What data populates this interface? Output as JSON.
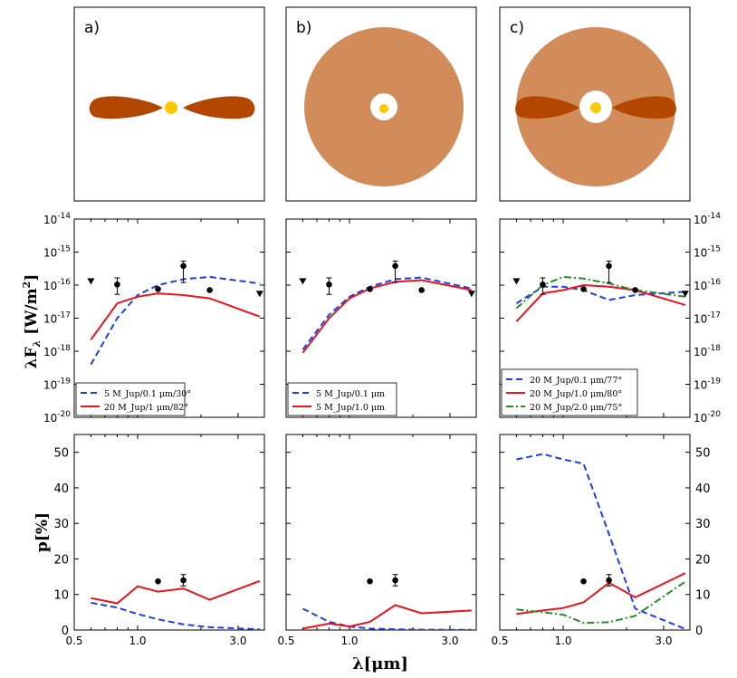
{
  "chart_data": [
    {
      "panel": "a",
      "type": "diagram",
      "title": "a)",
      "colors": {
        "disk": "#b34600",
        "star": "#ffc800"
      }
    },
    {
      "panel": "b",
      "type": "diagram",
      "title": "b)",
      "colors": {
        "envelope": "#d28c5a",
        "cavity": "#ffffff",
        "star": "#ffc800"
      }
    },
    {
      "panel": "c",
      "type": "diagram",
      "title": "c)",
      "colors": {
        "envelope": "#d28c5a",
        "disk": "#b34600",
        "cavity": "#ffffff",
        "star": "#ffc800"
      }
    },
    {
      "panel": "a-sed",
      "type": "line",
      "ylabel": "λF_λ [W/m²]",
      "yscale": "log",
      "ylim_exp": [
        -20,
        -14
      ],
      "xlim": [
        0.5,
        4.0
      ],
      "series": [
        {
          "name": "5 M_Jup/0.1 μm/30°",
          "color": "#1f3fe0",
          "style": "dashed",
          "x": [
            0.6,
            0.8,
            1.0,
            1.25,
            1.65,
            2.2,
            3.8
          ],
          "y_exp": [
            -18.4,
            -17.0,
            -16.3,
            -16.0,
            -15.82,
            -15.75,
            -15.95
          ]
        },
        {
          "name": "20 M_Jup/1 μm/82°",
          "color": "#e8141e",
          "style": "solid",
          "x": [
            0.6,
            0.8,
            1.0,
            1.25,
            1.65,
            2.2,
            3.8
          ],
          "y_exp": [
            -17.65,
            -16.55,
            -16.35,
            -16.25,
            -16.3,
            -16.4,
            -16.95
          ]
        }
      ],
      "points": [
        {
          "x": 0.6,
          "y_exp": -15.9,
          "kind": "upper-limit"
        },
        {
          "x": 0.8,
          "y_exp": -15.98,
          "err_lo": 0.3,
          "err_hi": 0.2
        },
        {
          "x": 1.25,
          "y_exp": -16.12
        },
        {
          "x": 1.65,
          "y_exp": -15.42,
          "err_lo": 0.5,
          "err_hi": 0.15
        },
        {
          "x": 2.2,
          "y_exp": -16.15
        },
        {
          "x": 3.8,
          "y_exp": -16.28,
          "kind": "upper-limit"
        }
      ],
      "legend": "lower-left"
    },
    {
      "panel": "b-sed",
      "type": "line",
      "yscale": "log",
      "ylim_exp": [
        -20,
        -14
      ],
      "xlim": [
        0.5,
        4.0
      ],
      "series": [
        {
          "name": "5 M_Jup/0.1 μm",
          "color": "#1f3fe0",
          "style": "dashed",
          "x": [
            0.6,
            0.8,
            1.0,
            1.25,
            1.65,
            2.2,
            3.8
          ],
          "y_exp": [
            -17.95,
            -16.9,
            -16.35,
            -16.05,
            -15.82,
            -15.77,
            -16.1
          ]
        },
        {
          "name": "5 M_Jup/1.0 μm",
          "color": "#e8141e",
          "style": "solid",
          "x": [
            0.6,
            0.8,
            1.0,
            1.25,
            1.65,
            2.2,
            3.8
          ],
          "y_exp": [
            -18.05,
            -17.0,
            -16.4,
            -16.1,
            -15.9,
            -15.85,
            -16.15
          ]
        }
      ],
      "points": [
        {
          "x": 0.6,
          "y_exp": -15.9,
          "kind": "upper-limit"
        },
        {
          "x": 0.8,
          "y_exp": -15.98,
          "err_lo": 0.3,
          "err_hi": 0.2
        },
        {
          "x": 1.25,
          "y_exp": -16.12
        },
        {
          "x": 1.65,
          "y_exp": -15.42,
          "err_lo": 0.5,
          "err_hi": 0.15
        },
        {
          "x": 2.2,
          "y_exp": -16.15
        },
        {
          "x": 3.8,
          "y_exp": -16.28,
          "kind": "upper-limit"
        }
      ],
      "legend": "lower-left"
    },
    {
      "panel": "c-sed",
      "type": "line",
      "yscale": "log",
      "ylim_exp": [
        -20,
        -14
      ],
      "xlim": [
        0.5,
        4.0
      ],
      "series": [
        {
          "name": "20 M_Jup/0.1 μm/77°",
          "color": "#1f3fe0",
          "style": "dashed",
          "x": [
            0.6,
            0.8,
            1.0,
            1.25,
            1.65,
            2.2,
            3.8
          ],
          "y_exp": [
            -16.55,
            -16.05,
            -16.05,
            -16.15,
            -16.45,
            -16.3,
            -16.2
          ]
        },
        {
          "name": "20 M_Jup/1.0 μm/80°",
          "color": "#e8141e",
          "style": "solid",
          "x": [
            0.6,
            0.8,
            1.0,
            1.25,
            1.65,
            2.2,
            3.8
          ],
          "y_exp": [
            -17.1,
            -16.25,
            -16.15,
            -16.0,
            -16.05,
            -16.15,
            -16.6
          ]
        },
        {
          "name": "20 M_Jup/2.0 μm/75°",
          "color": "#2a8a2a",
          "style": "dashdot",
          "x": [
            0.6,
            0.8,
            1.0,
            1.25,
            1.65,
            2.2,
            3.8
          ],
          "y_exp": [
            -16.7,
            -16.0,
            -15.75,
            -15.8,
            -15.95,
            -16.15,
            -16.35
          ]
        }
      ],
      "points": [
        {
          "x": 0.6,
          "y_exp": -15.9,
          "kind": "upper-limit"
        },
        {
          "x": 0.8,
          "y_exp": -15.98,
          "err_lo": 0.3,
          "err_hi": 0.2
        },
        {
          "x": 1.25,
          "y_exp": -16.12
        },
        {
          "x": 1.65,
          "y_exp": -15.42,
          "err_lo": 0.5,
          "err_hi": 0.15
        },
        {
          "x": 2.2,
          "y_exp": -16.15
        },
        {
          "x": 3.8,
          "y_exp": -16.28,
          "kind": "upper-limit"
        }
      ],
      "legend": "lower-left"
    },
    {
      "panel": "a-pol",
      "type": "line",
      "ylabel": "p[%]",
      "ylim": [
        0,
        55
      ],
      "xlim": [
        0.5,
        4.0
      ],
      "series": [
        {
          "color": "#1f3fe0",
          "style": "dashed",
          "x": [
            0.6,
            0.8,
            1.0,
            1.25,
            1.65,
            2.2,
            3.8
          ],
          "y": [
            7.7,
            6.3,
            4.5,
            3.0,
            1.6,
            0.8,
            0.2
          ]
        },
        {
          "color": "#e8141e",
          "style": "solid",
          "x": [
            0.6,
            0.8,
            1.0,
            1.25,
            1.65,
            2.2,
            3.8
          ],
          "y": [
            9.0,
            7.5,
            12.3,
            10.8,
            11.7,
            8.5,
            13.8
          ]
        }
      ],
      "points": [
        {
          "x": 1.25,
          "y": 13.7
        },
        {
          "x": 1.65,
          "y": 14.0,
          "err": 1.6
        }
      ]
    },
    {
      "panel": "b-pol",
      "type": "line",
      "ylim": [
        0,
        55
      ],
      "xlim": [
        0.5,
        4.0
      ],
      "series": [
        {
          "color": "#1f3fe0",
          "style": "dashed",
          "x": [
            0.6,
            0.8,
            1.0,
            1.25,
            1.65,
            2.2,
            3.8
          ],
          "y": [
            6.0,
            2.3,
            1.0,
            0.4,
            0.2,
            0.1,
            0.05
          ]
        },
        {
          "color": "#e8141e",
          "style": "solid",
          "x": [
            0.6,
            0.8,
            1.0,
            1.25,
            1.65,
            2.2,
            3.8
          ],
          "y": [
            0.4,
            1.8,
            1.0,
            2.3,
            7.0,
            4.7,
            5.5
          ]
        }
      ],
      "points": [
        {
          "x": 1.25,
          "y": 13.7
        },
        {
          "x": 1.65,
          "y": 14.0,
          "err": 1.6
        }
      ]
    },
    {
      "panel": "c-pol",
      "type": "line",
      "ylim": [
        0,
        55
      ],
      "xlim": [
        0.5,
        4.0
      ],
      "series": [
        {
          "color": "#1f3fe0",
          "style": "dashed",
          "x": [
            0.6,
            0.8,
            1.0,
            1.25,
            1.65,
            2.2,
            3.8
          ],
          "y": [
            48.0,
            49.5,
            48.0,
            46.8,
            27.0,
            6.0,
            0.3
          ]
        },
        {
          "color": "#e8141e",
          "style": "solid",
          "x": [
            0.6,
            0.8,
            1.0,
            1.25,
            1.65,
            2.2,
            3.8
          ],
          "y": [
            4.5,
            5.5,
            6.2,
            7.8,
            13.3,
            9.2,
            16.0
          ]
        },
        {
          "color": "#2a8a2a",
          "style": "dashdot",
          "x": [
            0.6,
            0.8,
            1.0,
            1.25,
            1.65,
            2.2,
            3.8
          ],
          "y": [
            5.8,
            5.0,
            4.3,
            2.0,
            2.2,
            4.0,
            13.6
          ]
        }
      ],
      "points": [
        {
          "x": 1.25,
          "y": 13.7
        },
        {
          "x": 1.65,
          "y": 14.0,
          "err": 1.6
        }
      ]
    }
  ],
  "axes": {
    "x_ticks": [
      "0.5",
      "1.0",
      "3.0"
    ],
    "x_tick_values": [
      0.5,
      1.0,
      3.0
    ],
    "xlabel": "λ[μm]",
    "pol_ticks": [
      "0",
      "10",
      "20",
      "30",
      "40",
      "50"
    ],
    "pol_tick_values": [
      0,
      10,
      20,
      30,
      40,
      50
    ],
    "sed_tick_exps": [
      -20,
      -19,
      -18,
      -17,
      -16,
      -15,
      -14
    ],
    "sed_ylabel_main": "λF",
    "sed_ylabel_sub": "λ",
    "sed_ylabel_unit": "[W/m",
    "sed_ylabel_sup": "2",
    "sed_ylabel_close": "]",
    "pol_ylabel": "p[%]"
  }
}
